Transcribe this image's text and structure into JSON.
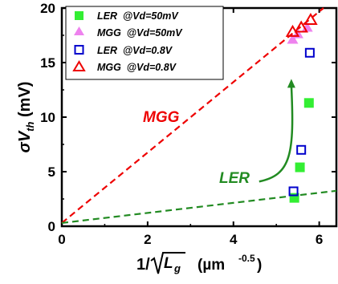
{
  "chart_data": {
    "type": "scatter",
    "xlabel_prefix": "1/",
    "xlabel_var": "L",
    "xlabel_sub": "g",
    "xlabel_unit": "(µm",
    "xlabel_exp": "-0.5",
    "xlabel_close": ")",
    "ylabel_prefix": "σV",
    "ylabel_sub": "th",
    "ylabel_unit": " (mV)",
    "xlim": [
      0,
      6.4
    ],
    "ylim": [
      0,
      20
    ],
    "xticks": [
      0,
      2,
      4,
      6
    ],
    "yticks": [
      0,
      5,
      10,
      15,
      20
    ],
    "grid": false,
    "legend_position": "top-left",
    "series": [
      {
        "name": "LER  @Vd=50mV",
        "marker": "square-filled",
        "color": "#33ee33",
        "x": [
          5.42,
          5.55,
          5.76
        ],
        "y": [
          2.6,
          5.4,
          11.3
        ]
      },
      {
        "name": "MGG  @Vd=50mV",
        "marker": "triangle-filled",
        "color": "#ee82ee",
        "x": [
          5.38,
          5.5,
          5.72
        ],
        "y": [
          17.1,
          17.6,
          18.2
        ]
      },
      {
        "name": "LER  @Vd=0.8V",
        "marker": "square-open",
        "color": "#0000cc",
        "x": [
          5.4,
          5.58,
          5.78
        ],
        "y": [
          3.2,
          7.0,
          15.9
        ]
      },
      {
        "name": "MGG  @Vd=0.8V",
        "marker": "triangle-open",
        "color": "#ee0000",
        "x": [
          5.38,
          5.58,
          5.8
        ],
        "y": [
          17.8,
          18.2,
          18.9
        ]
      }
    ],
    "trend_lines": [
      {
        "label": "MGG",
        "color": "#ee0000",
        "dash": true,
        "x": [
          0,
          6.1
        ],
        "y": [
          0.3,
          20
        ]
      },
      {
        "label": "LER",
        "color": "#228b22",
        "dash": true,
        "x": [
          0,
          6.4
        ],
        "y": [
          0.3,
          3.25
        ]
      }
    ],
    "annotations": [
      {
        "text": "MGG",
        "color": "#ee0000"
      },
      {
        "text": "LER",
        "color": "#228b22"
      }
    ],
    "arrow": {
      "color": "#228b22",
      "from": [
        4.6,
        4.1
      ],
      "to": [
        5.35,
        13.5
      ]
    }
  }
}
